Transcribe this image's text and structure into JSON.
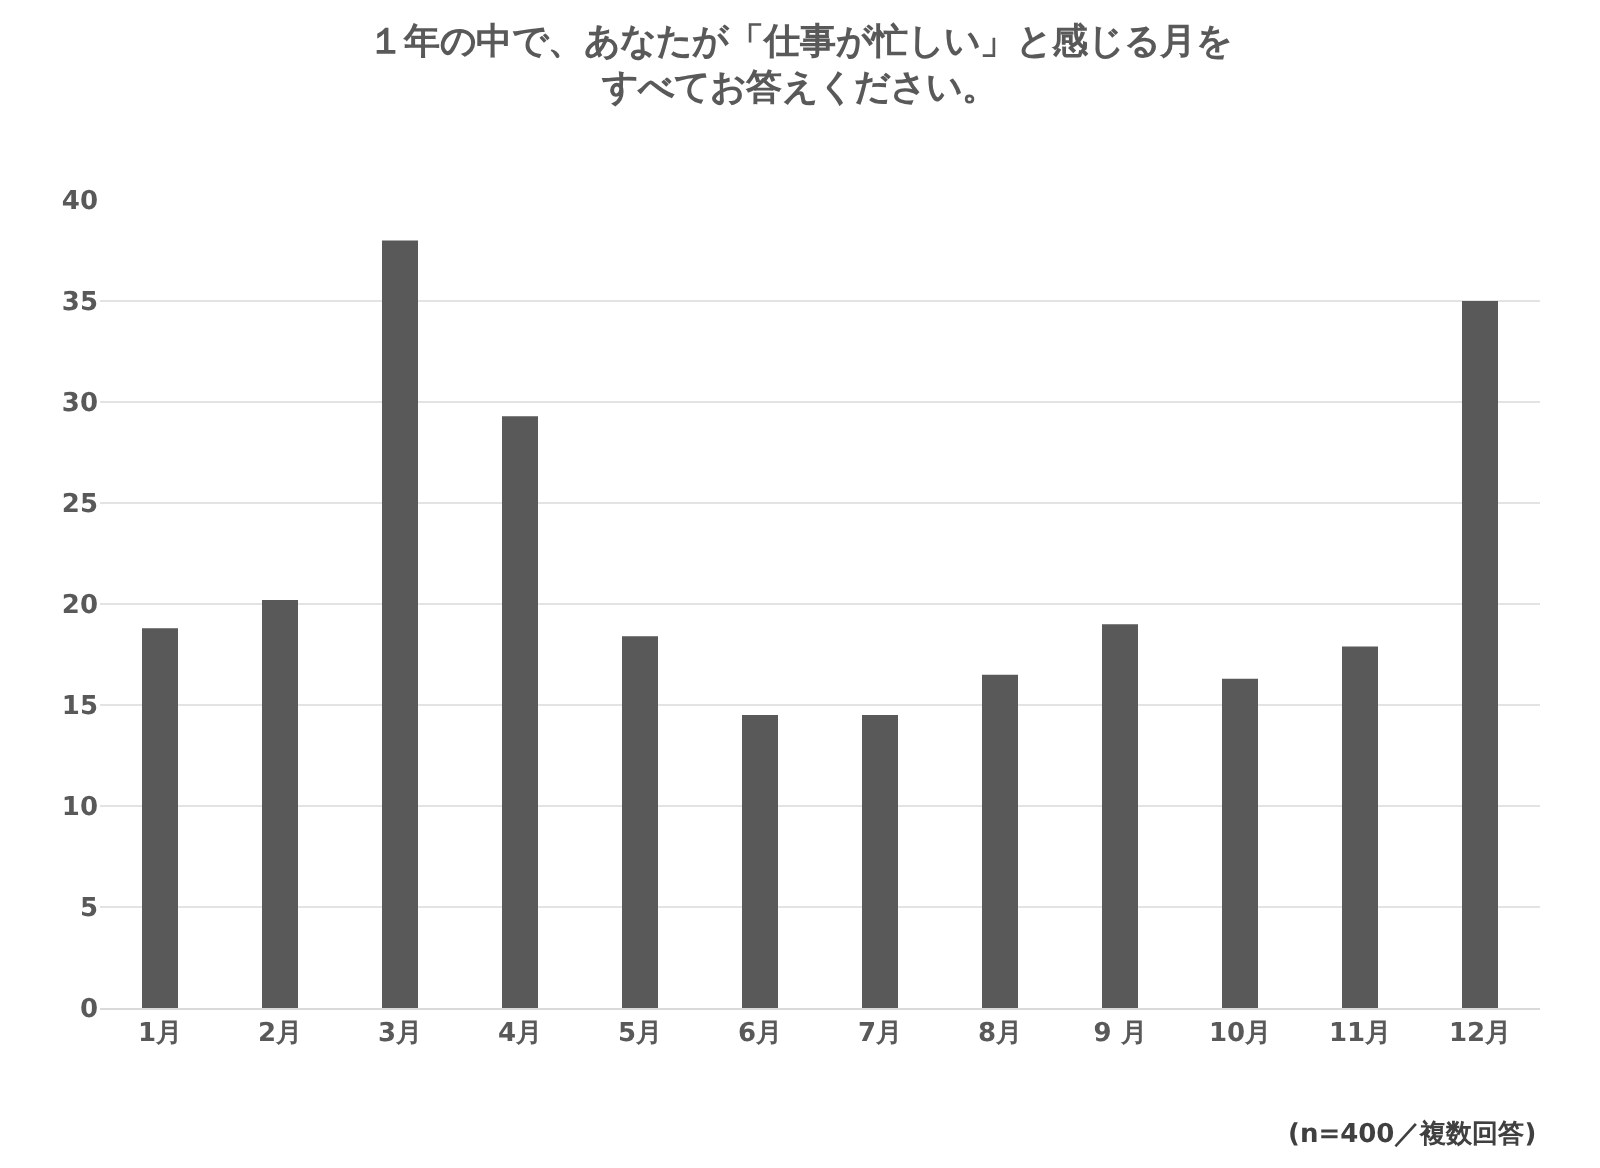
{
  "chart_data": {
    "type": "bar",
    "title": "１年の中で、あなたが「仕事が忙しい」と感じる月をすべてお答えください。",
    "categories": [
      "1月",
      "2月",
      "3月",
      "4月",
      "5月",
      "6月",
      "7月",
      "8月",
      "9 月",
      "10月",
      "11月",
      "12月"
    ],
    "values": [
      18.8,
      20.2,
      38.0,
      29.3,
      18.4,
      14.5,
      14.5,
      16.5,
      19.0,
      16.3,
      17.9,
      35.0
    ],
    "color": "#595959",
    "ylim": [
      0,
      40
    ],
    "yticks": [
      0,
      5,
      10,
      15,
      20,
      25,
      30,
      35,
      40
    ],
    "grid": "y",
    "annotations": [
      "(n=400／複数回答)"
    ]
  }
}
